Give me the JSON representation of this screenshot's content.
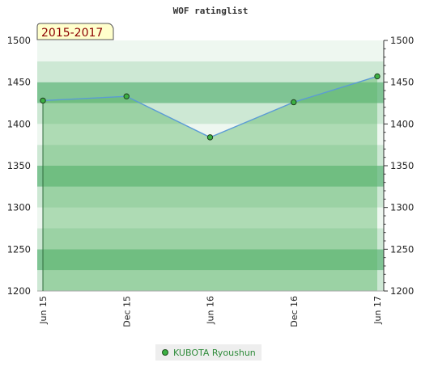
{
  "chart_data": {
    "type": "line",
    "title": "WOF ratinglist",
    "period_label": "2015-2017",
    "x_labels": [
      "Jun 15",
      "Dec 15",
      "Jun 16",
      "Dec 16",
      "Jun 17"
    ],
    "series": [
      {
        "name": "KUBOTA Ryoushun",
        "values": [
          1428,
          1433,
          1384,
          1426,
          1457
        ]
      }
    ],
    "ylim": [
      1200,
      1500
    ],
    "y_ticks": [
      1200,
      1250,
      1300,
      1350,
      1400,
      1450,
      1500
    ],
    "y_axis_sides": [
      "left",
      "right"
    ],
    "grid": true,
    "legend_position": "bottom-center",
    "colors": {
      "line": "#5b9bd5",
      "marker_fill": "#3cb043",
      "area_fill": "#5fb86a",
      "band_light": "#eef7f0",
      "band_mid": "#cde8d4",
      "band_dark": "#7fc494",
      "period_box": "#ffffcc",
      "period_text": "#8b0000"
    }
  }
}
